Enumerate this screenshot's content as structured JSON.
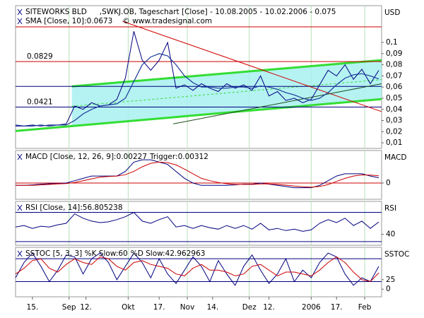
{
  "chart_data": [
    {
      "type": "line",
      "title_rows": [
        [
          {
            "text": "SITEWORKS BLD",
            "color": "#000080"
          },
          {
            "text": ",SWKJ.OB, Tageschart [Close] - 10.08.2005 - 10.02.2006 - 0.075",
            "color": "#000080"
          }
        ],
        [
          {
            "text": "SMA [Close, 10]:0.0673",
            "color": "#000080"
          },
          {
            "text": "© www.tradesignal.com",
            "color": "#000080"
          }
        ]
      ],
      "axis_label": "USD",
      "xlim": [
        0,
        130
      ],
      "ylim": [
        0.005,
        0.133
      ],
      "yticks": [
        {
          "value": 0.01,
          "label": "0,01"
        },
        {
          "value": 0.02,
          "label": "0,02"
        },
        {
          "value": 0.03,
          "label": "0,03"
        },
        {
          "value": 0.04,
          "label": "0,04"
        },
        {
          "value": 0.05,
          "label": "0,05"
        },
        {
          "value": 0.06,
          "label": "0,06"
        },
        {
          "value": 0.07,
          "label": "0,07"
        },
        {
          "value": 0.08,
          "label": "0,08"
        },
        {
          "value": 0.09,
          "label": "0,09"
        },
        {
          "value": 0.1,
          "label": "0,1"
        }
      ],
      "levels": [
        {
          "value": 0.114,
          "color": "#cc0000",
          "show_value": false
        },
        {
          "value": 0.0829,
          "color": "#cc0000",
          "show_value": true
        },
        {
          "value": 0.0606,
          "color": "#000080",
          "show_value": false
        },
        {
          "value": 0.0421,
          "color": "#000080",
          "show_value": true
        }
      ],
      "channel": {
        "color": "#33dd33",
        "fill": "#a8f0f0",
        "upper": {
          "x": [
            20,
            130
          ],
          "values": [
            0.0606,
            0.0841
          ]
        },
        "lower": {
          "x": [
            0,
            130
          ],
          "values": [
            0.0206,
            0.0492
          ]
        }
      },
      "trend_lines": [
        {
          "color": "#d00000",
          "x": [
            38,
            130
          ],
          "values": [
            0.119,
            0.038
          ]
        },
        {
          "color": "#1a4a1a",
          "x": [
            56,
            130
          ],
          "values": [
            0.027,
            0.063
          ]
        }
      ],
      "x": [
        0,
        3,
        6,
        9,
        12,
        15,
        18,
        21,
        24,
        27,
        30,
        33,
        36,
        39,
        42,
        45,
        48,
        51,
        54,
        57,
        60,
        63,
        66,
        69,
        72,
        75,
        78,
        81,
        84,
        87,
        90,
        93,
        96,
        99,
        102,
        105,
        108,
        111,
        114,
        117,
        120,
        123,
        126,
        129
      ],
      "series": [
        {
          "name": "Close",
          "color": "#000080",
          "width": 1,
          "values": [
            0.025,
            0.025,
            0.026,
            0.025,
            0.026,
            0.026,
            0.027,
            0.043,
            0.04,
            0.046,
            0.043,
            0.044,
            0.049,
            0.068,
            0.11,
            0.084,
            0.075,
            0.084,
            0.1,
            0.059,
            0.062,
            0.057,
            0.063,
            0.059,
            0.056,
            0.063,
            0.059,
            0.062,
            0.057,
            0.07,
            0.052,
            0.056,
            0.048,
            0.05,
            0.046,
            0.049,
            0.062,
            0.075,
            0.07,
            0.08,
            0.067,
            0.076,
            0.063,
            0.075
          ]
        },
        {
          "name": "SMA",
          "color": "#1a3a9a",
          "width": 1.2,
          "values": [
            0.026,
            0.025,
            0.025,
            0.026,
            0.025,
            0.026,
            0.026,
            0.03,
            0.036,
            0.04,
            0.043,
            0.044,
            0.045,
            0.05,
            0.065,
            0.08,
            0.087,
            0.09,
            0.088,
            0.08,
            0.07,
            0.064,
            0.06,
            0.06,
            0.059,
            0.059,
            0.06,
            0.06,
            0.059,
            0.061,
            0.06,
            0.058,
            0.055,
            0.053,
            0.05,
            0.048,
            0.05,
            0.055,
            0.062,
            0.068,
            0.071,
            0.072,
            0.07,
            0.0673
          ]
        }
      ]
    },
    {
      "type": "line",
      "title_rows": [
        [
          {
            "text": "MACD [Close, 12, 26, 9]:0.00227",
            "color": "#cc0000"
          },
          {
            "text": "Trigger:0.00312",
            "color": "#000080"
          }
        ]
      ],
      "axis_label": "MACD",
      "xlim": [
        0,
        130
      ],
      "ylim": [
        -0.007,
        0.014
      ],
      "yticks": [
        0
      ],
      "levels": [
        {
          "value": 0,
          "color": "#cc0000",
          "show_value": false
        }
      ],
      "x": [
        0,
        3,
        6,
        9,
        12,
        15,
        18,
        21,
        24,
        27,
        30,
        33,
        36,
        39,
        42,
        45,
        48,
        51,
        54,
        57,
        60,
        63,
        66,
        69,
        72,
        75,
        78,
        81,
        84,
        87,
        90,
        93,
        96,
        99,
        102,
        105,
        108,
        111,
        114,
        117,
        120,
        123,
        126,
        129
      ],
      "series": [
        {
          "name": "MACD",
          "color": "#000080",
          "width": 1,
          "values": [
            -0.001,
            -0.001,
            -0.0008,
            -0.0005,
            -0.0003,
            -0.0002,
            0,
            0.001,
            0.002,
            0.003,
            0.003,
            0.003,
            0.003,
            0.005,
            0.009,
            0.01,
            0.01,
            0.009,
            0.008,
            0.005,
            0.002,
            0.0,
            -0.001,
            -0.001,
            -0.001,
            -0.001,
            -0.0008,
            -0.0005,
            -0.0005,
            0,
            -0.0005,
            -0.001,
            -0.0015,
            -0.002,
            -0.002,
            -0.002,
            -0.001,
            0.001,
            0.003,
            0.004,
            0.004,
            0.004,
            0.003,
            0.00227
          ]
        },
        {
          "name": "Trigger",
          "color": "#cc0000",
          "width": 1,
          "values": [
            -0.001,
            -0.001,
            -0.001,
            -0.0008,
            -0.0006,
            -0.0004,
            -0.0002,
            0.0002,
            0.001,
            0.0018,
            0.0025,
            0.0028,
            0.003,
            0.0036,
            0.005,
            0.007,
            0.0085,
            0.009,
            0.0088,
            0.0078,
            0.006,
            0.004,
            0.002,
            0.001,
            0.0002,
            -0.0003,
            -0.0006,
            -0.0006,
            -0.0006,
            -0.0004,
            -0.0004,
            -0.0006,
            -0.0009,
            -0.0013,
            -0.0016,
            -0.0018,
            -0.0015,
            -0.0007,
            0.0007,
            0.002,
            0.003,
            0.0035,
            0.0034,
            0.00312
          ]
        }
      ]
    },
    {
      "type": "line",
      "title_rows": [
        [
          {
            "text": "RSI [Close, 14]:56.805238",
            "color": "#000080"
          }
        ]
      ],
      "axis_label": "RSI",
      "xlim": [
        0,
        130
      ],
      "ylim": [
        25,
        85
      ],
      "yticks": [
        40
      ],
      "levels": [
        {
          "value": 70,
          "color": "#000080",
          "show_value": false
        },
        {
          "value": 30,
          "color": "#000080",
          "show_value": false
        }
      ],
      "x": [
        0,
        3,
        6,
        9,
        12,
        15,
        18,
        21,
        24,
        27,
        30,
        33,
        36,
        39,
        42,
        45,
        48,
        51,
        54,
        57,
        60,
        63,
        66,
        69,
        72,
        75,
        78,
        81,
        84,
        87,
        90,
        93,
        96,
        99,
        102,
        105,
        108,
        111,
        114,
        117,
        120,
        123,
        126,
        129
      ],
      "series": [
        {
          "name": "RSI",
          "color": "#000080",
          "width": 1,
          "values": [
            50,
            52,
            48,
            51,
            50,
            53,
            55,
            68,
            62,
            58,
            56,
            57,
            60,
            64,
            70,
            58,
            55,
            60,
            64,
            50,
            52,
            48,
            52,
            49,
            47,
            52,
            48,
            52,
            47,
            55,
            46,
            48,
            45,
            47,
            44,
            46,
            55,
            60,
            56,
            62,
            52,
            58,
            48,
            56.8
          ]
        }
      ]
    },
    {
      "type": "line",
      "title_rows": [
        [
          {
            "text": "SSTOC [5, 3, 3] %K Slow:60",
            "color": "#000080"
          },
          {
            "text": "%D Slow:42.962963",
            "color": "#cc0000"
          }
        ]
      ],
      "axis_label": "SSTOC",
      "xlim": [
        0,
        130
      ],
      "ylim": [
        -20,
        110
      ],
      "yticks": [
        0,
        25
      ],
      "xticks": [
        {
          "value": 6,
          "label": "15."
        },
        {
          "value": 19,
          "label": "Sep"
        },
        {
          "value": 25,
          "label": "12."
        },
        {
          "value": 40,
          "label": "Okt"
        },
        {
          "value": 51,
          "label": "17."
        },
        {
          "value": 61,
          "label": "Nov"
        },
        {
          "value": 70,
          "label": "14."
        },
        {
          "value": 83,
          "label": "Dez"
        },
        {
          "value": 90,
          "label": "12."
        },
        {
          "value": 105,
          "label": "2006"
        },
        {
          "value": 114,
          "label": "17."
        },
        {
          "value": 124,
          "label": "Feb"
        }
      ],
      "levels": [
        {
          "value": 80,
          "color": "#000080",
          "show_value": false
        },
        {
          "value": 20,
          "color": "#000080",
          "show_value": false
        }
      ],
      "x": [
        0,
        3,
        6,
        9,
        12,
        15,
        18,
        21,
        24,
        27,
        30,
        33,
        36,
        39,
        42,
        45,
        48,
        51,
        54,
        57,
        60,
        63,
        66,
        69,
        72,
        75,
        78,
        81,
        84,
        87,
        90,
        93,
        96,
        99,
        102,
        105,
        108,
        111,
        114,
        117,
        120,
        123,
        126,
        129
      ],
      "series": [
        {
          "name": "%K Slow",
          "color": "#000080",
          "width": 1,
          "values": [
            30,
            70,
            95,
            60,
            20,
            50,
            90,
            85,
            40,
            80,
            95,
            70,
            25,
            60,
            95,
            70,
            30,
            80,
            40,
            15,
            50,
            85,
            60,
            20,
            75,
            40,
            10,
            60,
            90,
            50,
            15,
            40,
            80,
            20,
            50,
            30,
            70,
            95,
            85,
            40,
            10,
            30,
            20,
            60
          ]
        },
        {
          "name": "%D Slow",
          "color": "#cc0000",
          "width": 1,
          "values": [
            40,
            55,
            75,
            80,
            55,
            45,
            65,
            80,
            70,
            65,
            85,
            80,
            60,
            50,
            70,
            75,
            65,
            60,
            55,
            40,
            35,
            55,
            65,
            50,
            50,
            45,
            35,
            40,
            60,
            65,
            50,
            35,
            45,
            45,
            40,
            35,
            50,
            70,
            85,
            70,
            45,
            25,
            20,
            42.96
          ]
        }
      ]
    }
  ]
}
